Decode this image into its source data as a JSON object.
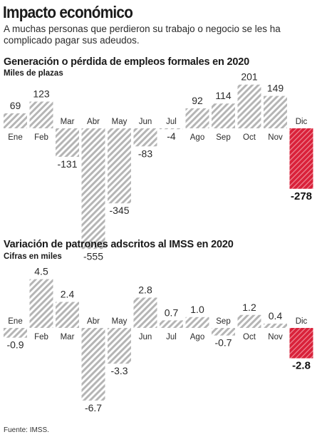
{
  "header": {
    "title": "Impacto económico",
    "subtitle": "A muchas personas que perdieron su trabajo o negocio se les ha complicado pagar sus adeudos."
  },
  "colors": {
    "bar": "#b5b5b5",
    "highlight": "#d9213a"
  },
  "chart_data": [
    {
      "type": "bar",
      "title": "Generación o pérdida de empleos formales en 2020",
      "subtitle": "Miles de plazas",
      "categories": [
        "Ene",
        "Feb",
        "Mar",
        "Abr",
        "May",
        "Jun",
        "Jul",
        "Ago",
        "Sep",
        "Oct",
        "Nov",
        "Dic"
      ],
      "values": [
        69,
        123,
        -131,
        -555,
        -345,
        -83,
        -4,
        92,
        114,
        201,
        149,
        -278
      ],
      "labels": [
        "69",
        "123",
        "-131",
        "-555",
        "-345",
        "-83",
        "-4",
        "92",
        "114",
        "201",
        "149",
        "-278"
      ],
      "highlight": "Dic"
    },
    {
      "type": "bar",
      "title": "Variación de patrones adscritos al IMSS en 2020",
      "subtitle": "Cifras en miles",
      "categories": [
        "Ene",
        "Feb",
        "Mar",
        "Abr",
        "May",
        "Jun",
        "Jul",
        "Ago",
        "Sep",
        "Oct",
        "Nov",
        "Dic"
      ],
      "values": [
        -0.9,
        4.5,
        2.4,
        -6.7,
        -3.3,
        2.8,
        0.7,
        1.0,
        -0.7,
        1.2,
        0.4,
        -2.8
      ],
      "labels": [
        "-0.9",
        "4.5",
        "2.4",
        "-6.7",
        "-3.3",
        "2.8",
        "0.7",
        "1.0",
        "-0.7",
        "1.2",
        "0.4",
        "-2.8"
      ],
      "highlight": "Dic"
    }
  ],
  "footer": {
    "source": "Fuente: IMSS."
  }
}
